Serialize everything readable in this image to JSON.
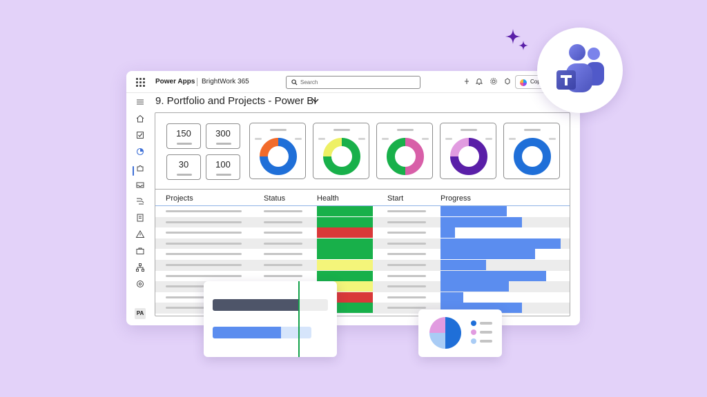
{
  "topbar": {
    "app_name": "Power Apps",
    "environment": "BrightWork 365",
    "search_placeholder": "Search",
    "copilot_label": "Cop"
  },
  "sidebar": {
    "items": [
      "menu-icon",
      "home-icon",
      "tasks-icon",
      "dashboard-icon",
      "puzzle-icon",
      "inbox-icon",
      "flow-icon",
      "report-icon",
      "warning-icon",
      "briefcase-icon",
      "org-chart-icon",
      "settings-icon"
    ],
    "avatar_initials": "PA"
  },
  "page": {
    "title": "9. Portfolio and Projects - Power BI"
  },
  "kpis": [
    "150",
    "300",
    "30",
    "100"
  ],
  "donuts": [
    {
      "segments": [
        {
          "color": "#1f6fd8",
          "fraction": 0.75
        },
        {
          "color": "#f26b2b",
          "fraction": 0.25
        }
      ]
    },
    {
      "segments": [
        {
          "color": "#18b04a",
          "fraction": 0.75
        },
        {
          "color": "#eef065",
          "fraction": 0.25
        }
      ]
    },
    {
      "segments": [
        {
          "color": "#d85fa8",
          "fraction": 0.5
        },
        {
          "color": "#18b04a",
          "fraction": 0.5
        }
      ]
    },
    {
      "segments": [
        {
          "color": "#5a1fa8",
          "fraction": 0.75
        },
        {
          "color": "#e19be0",
          "fraction": 0.25
        }
      ]
    },
    {
      "segments": [
        {
          "color": "#1f6fd8",
          "fraction": 1.0
        }
      ]
    }
  ],
  "table": {
    "headers": [
      "Projects",
      "Status",
      "Health",
      "Start",
      "Progress"
    ],
    "rows": [
      {
        "health": "#18b04a",
        "progress": 0.55
      },
      {
        "health": "#18b04a",
        "progress": 0.68
      },
      {
        "health": "#d93939",
        "progress": 0.12
      },
      {
        "health": "#18b04a",
        "progress": 1.0
      },
      {
        "health": "#18b04a",
        "progress": 0.79
      },
      {
        "health": "#f4f57a",
        "progress": 0.38
      },
      {
        "health": "#18b04a",
        "progress": 0.88
      },
      {
        "health": "#f4f57a",
        "progress": 0.57
      },
      {
        "health": "#d93939",
        "progress": 0.19
      },
      {
        "health": "#18b04a",
        "progress": 0.68
      }
    ]
  },
  "gantt": {
    "bar1_fraction": 0.75,
    "bar2_fraction": 0.69
  },
  "pie": {
    "slices": [
      {
        "color": "#1f6fd8",
        "fraction": 0.5
      },
      {
        "color": "#a9ccf5",
        "fraction": 0.25
      },
      {
        "color": "#e19be0",
        "fraction": 0.25
      }
    ],
    "legend_colors": [
      "#1f6fd8",
      "#e19be0",
      "#a9ccf5"
    ]
  },
  "colors": {
    "background": "#e3d2f9",
    "accent": "#5b8def",
    "teams_purple": "#5b5fc7",
    "sparkle": "#5a1fa8"
  }
}
